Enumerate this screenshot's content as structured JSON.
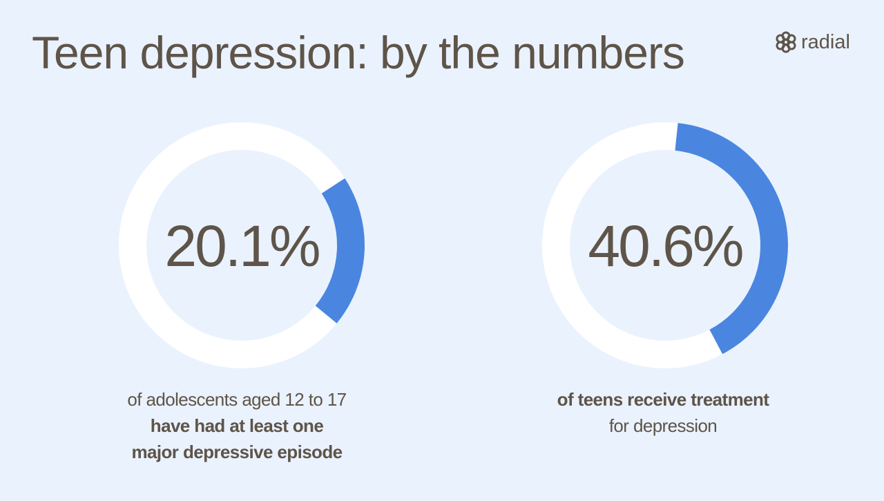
{
  "title": "Teen depression: by the numbers",
  "logo": "radial",
  "chart_data": [
    {
      "type": "donut",
      "values": [
        20.1
      ],
      "value_labels": [
        "20.1%"
      ],
      "color": "#4a86df",
      "caption": [
        {
          "text": "of adolescents aged 12 to 17",
          "bold": false
        },
        {
          "text": "have had at least one",
          "bold": true
        },
        {
          "text": "major depressive episode",
          "bold": true
        }
      ]
    },
    {
      "type": "donut",
      "values": [
        40.6
      ],
      "value_labels": [
        "40.6%"
      ],
      "color": "#4a86df",
      "caption": [
        {
          "text": "of teens receive treatment",
          "bold": true
        },
        {
          "text": "for depression",
          "bold": false
        }
      ]
    }
  ]
}
